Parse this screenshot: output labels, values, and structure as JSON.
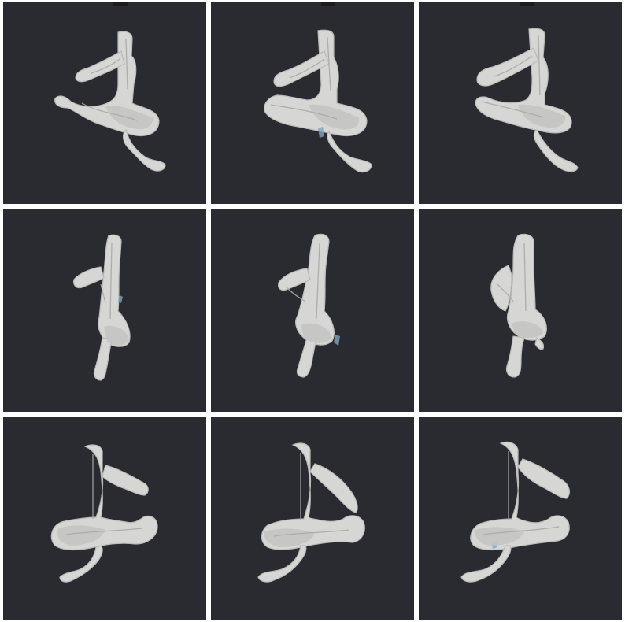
{
  "figure": {
    "rows": 3,
    "columns": 3,
    "panel_background": "#2a2b30",
    "divider_color": "#ffffff",
    "model_color": "#d6d6d4",
    "accent_color": "#7fa4c4",
    "panels": [
      {
        "row": 1,
        "col": 1,
        "view": "oblique",
        "variant": "a"
      },
      {
        "row": 1,
        "col": 2,
        "view": "oblique",
        "variant": "b"
      },
      {
        "row": 1,
        "col": 3,
        "view": "oblique",
        "variant": "c"
      },
      {
        "row": 2,
        "col": 1,
        "view": "side",
        "variant": "a"
      },
      {
        "row": 2,
        "col": 2,
        "view": "side",
        "variant": "b"
      },
      {
        "row": 2,
        "col": 3,
        "view": "side",
        "variant": "c"
      },
      {
        "row": 3,
        "col": 1,
        "view": "mirrored",
        "variant": "a"
      },
      {
        "row": 3,
        "col": 2,
        "view": "mirrored",
        "variant": "b"
      },
      {
        "row": 3,
        "col": 3,
        "view": "mirrored",
        "variant": "c"
      }
    ]
  }
}
